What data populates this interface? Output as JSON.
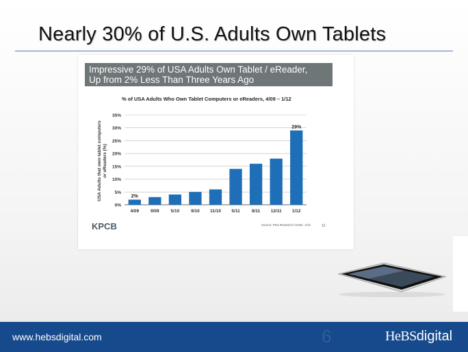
{
  "slide": {
    "title": "Nearly 30% of U.S. Adults Own Tablets"
  },
  "banner": {
    "line1": "Impressive 29% of USA Adults Own Tablet / eReader,",
    "line2": "Up from 2% Less Than Three Years Ago"
  },
  "chart_data": {
    "type": "bar",
    "title": "% of USA Adults Who Own Tablet Computers or eReaders, 4/09 – 1/12",
    "ylabel_line1": "USA Adults that own tablet computers",
    "ylabel_line2": "or eReaders (%)",
    "categories": [
      "4/09",
      "9/09",
      "5/10",
      "9/10",
      "11/10",
      "5/11",
      "8/11",
      "12/11",
      "1/12"
    ],
    "values": [
      2,
      3,
      4,
      5,
      6,
      14,
      16,
      18,
      29
    ],
    "data_labels": {
      "0": "2%",
      "8": "29%"
    },
    "yticks": [
      "0%",
      "5%",
      "10%",
      "15%",
      "20%",
      "25%",
      "30%",
      "35%"
    ],
    "ylim": [
      0,
      35
    ],
    "grid": true,
    "bar_color": "#1f6fb8",
    "logo": "KPCB",
    "source": "Source: Pew Research Center, 1/12.",
    "chart_page": "12"
  },
  "footer": {
    "url": "www.hebsdigital.com",
    "page_number": "6",
    "brand_hebs": "HeBS",
    "brand_digital": "digital",
    "bg_color": "#164a8c"
  }
}
